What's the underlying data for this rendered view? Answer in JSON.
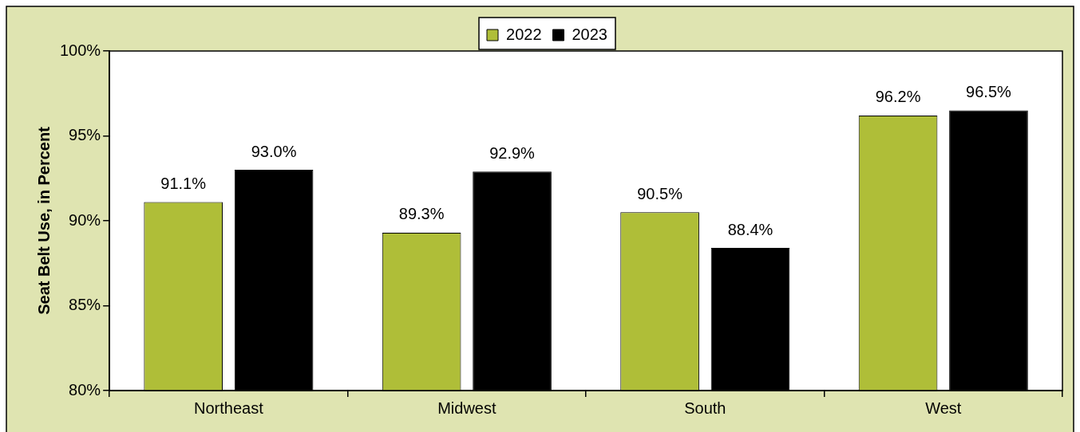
{
  "chart_data": {
    "type": "bar",
    "ylabel": "Seat Belt Use, in Percent",
    "categories": [
      "Northeast",
      "Midwest",
      "South",
      "West"
    ],
    "series": [
      {
        "name": "2022",
        "color": "#afbe38",
        "values": [
          91.1,
          89.3,
          90.5,
          96.2
        ],
        "value_labels": [
          "91.1%",
          "89.3%",
          "90.5%",
          "96.2%"
        ]
      },
      {
        "name": "2023",
        "color": "#000000",
        "values": [
          93.0,
          92.9,
          88.4,
          96.5
        ],
        "value_labels": [
          "93.0%",
          "92.9%",
          "88.4%",
          "96.5%"
        ]
      }
    ],
    "ylim": [
      80,
      100
    ],
    "yticks": [
      {
        "value": 80,
        "label": "80%"
      },
      {
        "value": 85,
        "label": "85%"
      },
      {
        "value": 90,
        "label": "90%"
      },
      {
        "value": 95,
        "label": "95%"
      },
      {
        "value": 100,
        "label": "100%"
      }
    ],
    "grid": false,
    "legend": "top"
  }
}
